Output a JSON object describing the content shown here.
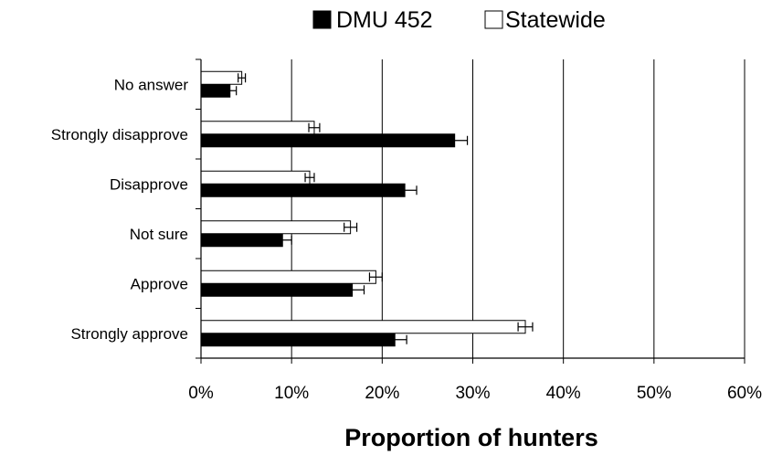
{
  "chart_data": {
    "type": "bar",
    "orientation": "horizontal",
    "categories": [
      "No answer",
      "Strongly disapprove",
      "Disapprove",
      "Not sure",
      "Approve",
      "Strongly approve"
    ],
    "series": [
      {
        "name": "DMU 452",
        "color": "#000000",
        "values": [
          3.2,
          28.0,
          22.5,
          9.0,
          16.7,
          21.4
        ],
        "errors": [
          0.7,
          1.4,
          1.3,
          1.0,
          1.3,
          1.3
        ]
      },
      {
        "name": "Statewide",
        "color": "#ffffff",
        "values": [
          4.5,
          12.5,
          12.0,
          16.5,
          19.3,
          35.8
        ],
        "errors": [
          0.4,
          0.6,
          0.5,
          0.7,
          0.7,
          0.8
        ]
      }
    ],
    "xlabel": "Proportion of hunters",
    "xlim": [
      0,
      60
    ],
    "xticks": [
      "0%",
      "10%",
      "20%",
      "30%",
      "40%",
      "50%",
      "60%"
    ],
    "grid": "vertical",
    "legend_position": "top"
  }
}
